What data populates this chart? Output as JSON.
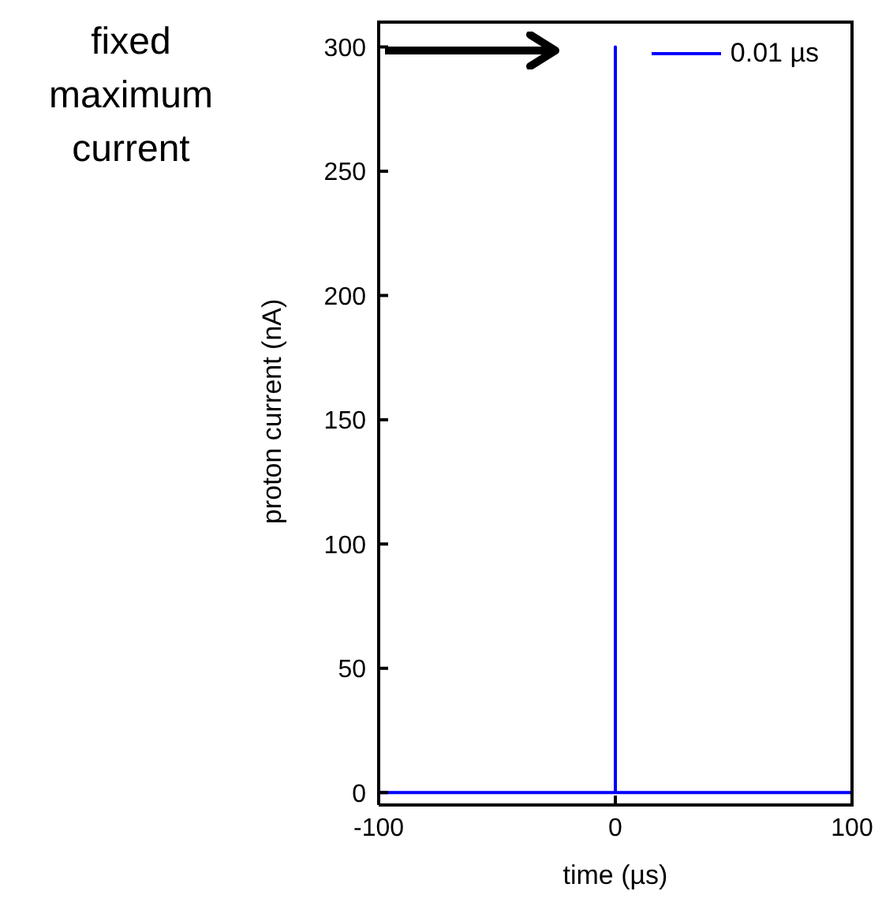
{
  "chart_data": {
    "type": "line",
    "xlabel": "time (µs)",
    "ylabel": "proton current (nA)",
    "xlim": [
      -100,
      100
    ],
    "xticks": [
      -100,
      0,
      100
    ],
    "ylim": [
      -5,
      310
    ],
    "yticks": [
      0,
      50,
      100,
      150,
      200,
      250,
      300
    ],
    "series": [
      {
        "name": "0.01 µs",
        "color": "#0000ff",
        "x": [
          -100,
          0,
          0,
          0.01,
          0.01,
          100
        ],
        "values": [
          0,
          0,
          300,
          300,
          0,
          0
        ]
      }
    ],
    "grid": false,
    "legend": "top right",
    "marker": "none",
    "line_style": "solid",
    "annotations": [
      "fixed maximum current"
    ]
  }
}
